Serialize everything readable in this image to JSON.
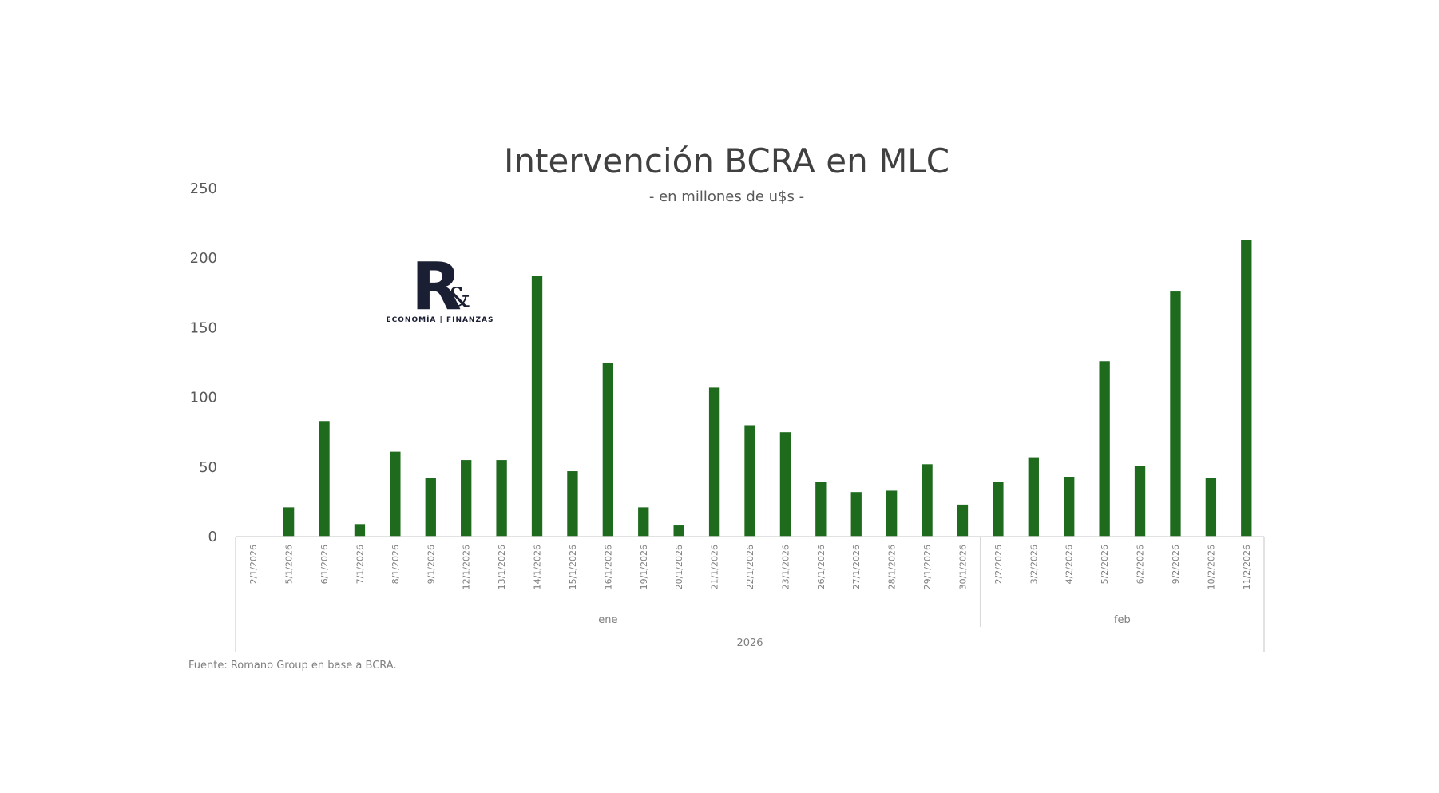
{
  "chart_data": {
    "type": "bar",
    "title": "Intervención BCRA en MLC",
    "subtitle": "- en millones de u$s -",
    "xlabel": "",
    "ylabel": "",
    "ylim": [
      0,
      250
    ],
    "yticks": [
      "250",
      "200",
      "150",
      "100",
      "50",
      "0"
    ],
    "bar_color": "#1e6b1e",
    "grid": false,
    "categories": [
      "2/1/2026",
      "5/1/2026",
      "6/1/2026",
      "7/1/2026",
      "8/1/2026",
      "9/1/2026",
      "12/1/2026",
      "13/1/2026",
      "14/1/2026",
      "15/1/2026",
      "16/1/2026",
      "19/1/2026",
      "20/1/2026",
      "21/1/2026",
      "22/1/2026",
      "23/1/2026",
      "26/1/2026",
      "27/1/2026",
      "28/1/2026",
      "29/1/2026",
      "30/1/2026",
      "2/2/2026",
      "3/2/2026",
      "4/2/2026",
      "5/2/2026",
      "6/2/2026",
      "9/2/2026",
      "10/2/2026",
      "11/2/2026"
    ],
    "values": [
      0,
      21,
      83,
      9,
      61,
      42,
      55,
      55,
      187,
      47,
      125,
      21,
      8,
      107,
      80,
      75,
      39,
      32,
      33,
      52,
      23,
      39,
      57,
      43,
      126,
      51,
      176,
      42,
      213
    ],
    "month_groups": [
      {
        "label": "ene",
        "count": 21
      },
      {
        "label": "feb",
        "count": 8
      }
    ],
    "year_label": "2026",
    "source": "Fuente: Romano Group en base a BCRA."
  },
  "logo": {
    "letter": "R",
    "ampersand": "&",
    "tagline": "ECONOMÍA | FINANZAS"
  }
}
